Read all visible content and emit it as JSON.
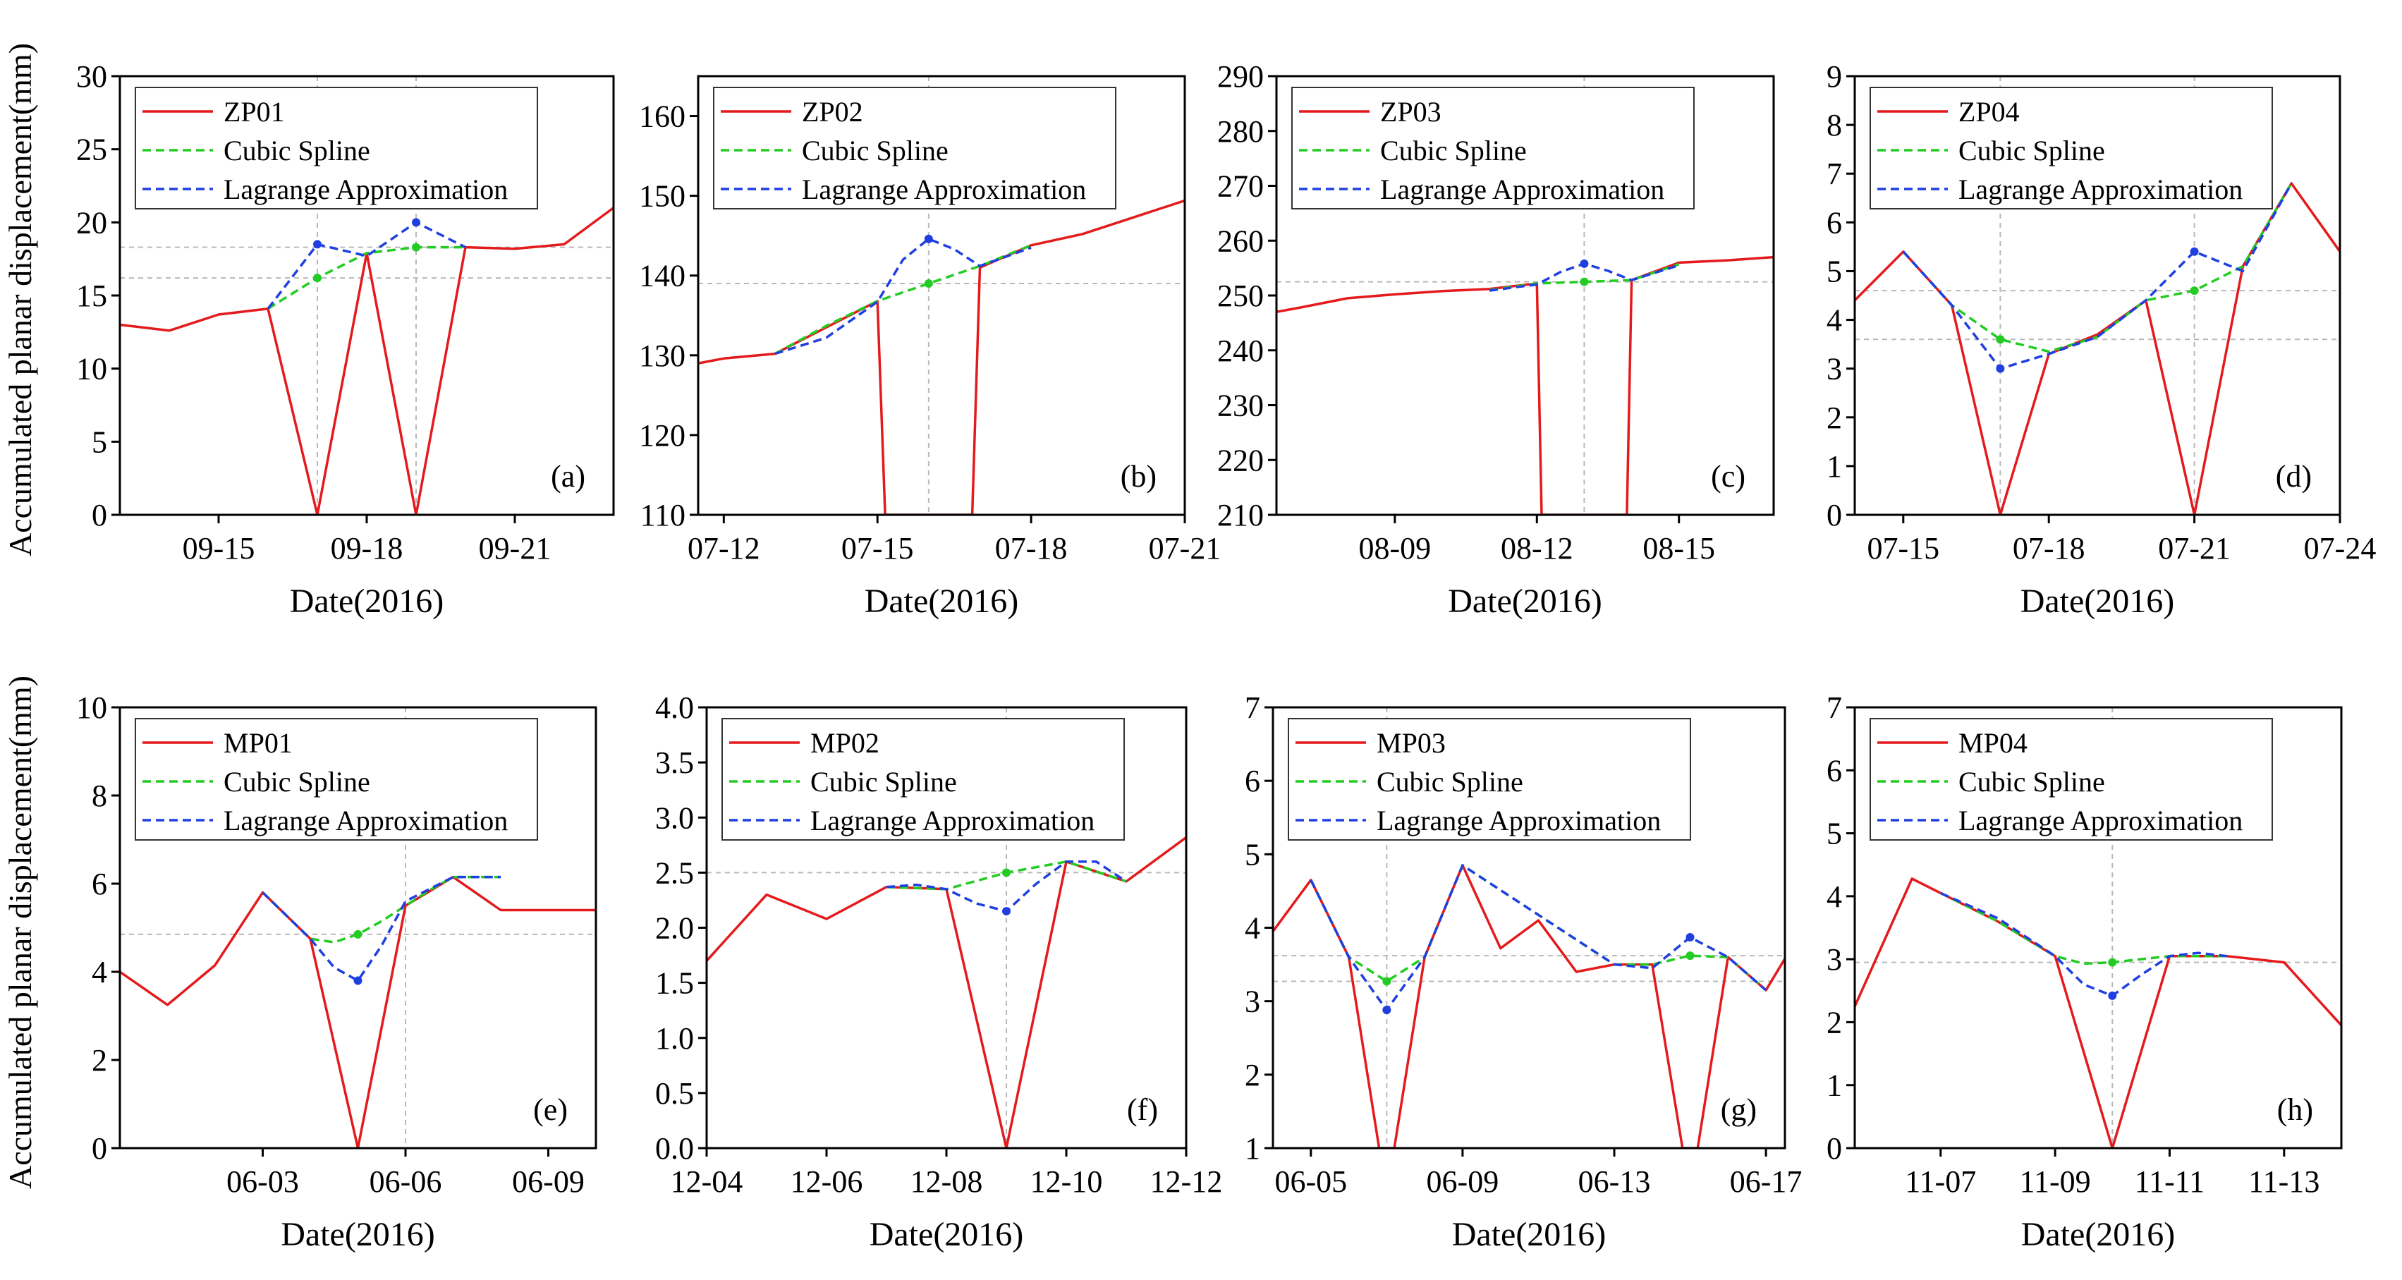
{
  "figure": {
    "row_ylabels": [
      "Accumulated planar displacement(mm)",
      "Accumulated planar displacement(mm)"
    ]
  },
  "series_colors": {
    "measured": "#e41a1c",
    "cubic": "#22cc22",
    "lagrange": "#1f3fe0"
  },
  "chart_data": [
    {
      "type": "line",
      "panel_label": "(a)",
      "xlabel": "Date(2016)",
      "xlim": [
        13.0,
        23.0
      ],
      "ylim": [
        0,
        30
      ],
      "xticks": [
        {
          "x": 15,
          "label": "09-15"
        },
        {
          "x": 18,
          "label": "09-18"
        },
        {
          "x": 21,
          "label": "09-21"
        }
      ],
      "yticks": [
        0,
        5,
        10,
        15,
        20,
        25,
        30
      ],
      "vguides": [
        17,
        19
      ],
      "hguides": [
        18.3,
        16.2
      ],
      "legend": [
        "ZP01",
        "Cubic Spline",
        "Lagrange Approximation"
      ],
      "measured": {
        "name": "ZP01",
        "x": [
          13,
          14,
          15,
          16,
          17,
          18,
          19,
          20,
          21,
          22,
          23
        ],
        "y": [
          13.0,
          12.6,
          13.7,
          14.1,
          0,
          17.9,
          0,
          18.3,
          18.2,
          18.5,
          21.0
        ]
      },
      "cubic": {
        "name": "Cubic Spline",
        "x": [
          16,
          17,
          18,
          19,
          20
        ],
        "y": [
          14.1,
          16.2,
          17.9,
          18.3,
          18.3
        ],
        "markers": [
          17,
          19
        ]
      },
      "lagrange": {
        "name": "Lagrange Approximation",
        "x": [
          16,
          17,
          18,
          19,
          20
        ],
        "y": [
          14.1,
          18.5,
          17.7,
          20.0,
          18.3
        ],
        "markers": [
          17,
          19
        ]
      },
      "grid": false,
      "legend_position": "top-left"
    },
    {
      "type": "line",
      "panel_label": "(b)",
      "xlabel": "Date(2016)",
      "xlim": [
        11.5,
        21.0
      ],
      "ylim": [
        110,
        165
      ],
      "xticks": [
        {
          "x": 12,
          "label": "07-12"
        },
        {
          "x": 15,
          "label": "07-15"
        },
        {
          "x": 18,
          "label": "07-18"
        },
        {
          "x": 21,
          "label": "07-21"
        }
      ],
      "yticks": [
        110,
        120,
        130,
        140,
        150,
        160
      ],
      "vguides": [
        16
      ],
      "hguides": [
        139
      ],
      "legend": [
        "ZP02",
        "Cubic Spline",
        "Lagrange Approximation"
      ],
      "measured": {
        "name": "ZP02",
        "x": [
          11.5,
          12,
          13,
          14,
          15,
          15.15,
          16.85,
          17,
          18,
          19,
          20,
          21
        ],
        "y": [
          129,
          129.6,
          130.2,
          133.5,
          136.8,
          110,
          110,
          141,
          143.8,
          145.2,
          147.3,
          149.4
        ]
      },
      "cubic": {
        "name": "Cubic Spline",
        "x": [
          13,
          14,
          15,
          16,
          17,
          18
        ],
        "y": [
          130.2,
          133.7,
          136.8,
          139.0,
          141.2,
          143.8
        ],
        "markers": [
          16
        ]
      },
      "lagrange": {
        "name": "Lagrange Approximation",
        "x": [
          13,
          14,
          15,
          15.5,
          16,
          16.5,
          17,
          18
        ],
        "y": [
          130.2,
          132.2,
          136.7,
          142.0,
          144.6,
          143.3,
          141.2,
          143.5
        ],
        "markers": [
          16
        ]
      },
      "grid": false,
      "legend_position": "top-left"
    },
    {
      "type": "line",
      "panel_label": "(c)",
      "xlabel": "Date(2016)",
      "xlim": [
        6.5,
        17.0
      ],
      "ylim": [
        210,
        290
      ],
      "xticks": [
        {
          "x": 9,
          "label": "08-09"
        },
        {
          "x": 12,
          "label": "08-12"
        },
        {
          "x": 15,
          "label": "08-15"
        }
      ],
      "yticks": [
        210,
        220,
        230,
        240,
        250,
        260,
        270,
        280,
        290
      ],
      "vguides": [
        13
      ],
      "hguides": [
        252.5
      ],
      "legend": [
        "ZP03",
        "Cubic Spline",
        "Lagrange Approximation"
      ],
      "measured": {
        "name": "ZP03",
        "x": [
          6.5,
          7,
          8,
          9,
          10,
          11,
          12,
          12.1,
          13.9,
          14,
          15,
          16,
          17
        ],
        "y": [
          247,
          247.8,
          249.5,
          250.2,
          250.8,
          251.2,
          252.2,
          210,
          210,
          252.8,
          256.0,
          256.4,
          257.0
        ]
      },
      "cubic": {
        "name": "Cubic Spline",
        "x": [
          11,
          12,
          13,
          14,
          15
        ],
        "y": [
          251.0,
          252.2,
          252.5,
          252.8,
          255.7
        ],
        "markers": [
          13
        ]
      },
      "lagrange": {
        "name": "Lagrange Approximation",
        "x": [
          11,
          12,
          12.5,
          13,
          13.5,
          14,
          15
        ],
        "y": [
          250.9,
          252.0,
          254.3,
          255.8,
          254.5,
          252.8,
          255.5
        ],
        "markers": [
          13
        ]
      },
      "grid": false,
      "legend_position": "top-left"
    },
    {
      "type": "line",
      "panel_label": "(d)",
      "xlabel": "Date(2016)",
      "xlim": [
        14.0,
        24.0
      ],
      "ylim": [
        0,
        9
      ],
      "xticks": [
        {
          "x": 15,
          "label": "07-15"
        },
        {
          "x": 18,
          "label": "07-18"
        },
        {
          "x": 21,
          "label": "07-21"
        },
        {
          "x": 24,
          "label": "07-24"
        }
      ],
      "yticks": [
        0,
        1,
        2,
        3,
        4,
        5,
        6,
        7,
        8,
        9
      ],
      "vguides": [
        17,
        21
      ],
      "hguides": [
        4.6,
        3.6
      ],
      "legend": [
        "ZP04",
        "Cubic Spline",
        "Lagrange Approximation"
      ],
      "measured": {
        "name": "ZP04",
        "x": [
          14,
          15,
          16,
          17,
          18,
          19,
          20,
          21,
          22,
          23,
          24
        ],
        "y": [
          4.4,
          5.4,
          4.3,
          0,
          3.3,
          3.7,
          4.4,
          0,
          5.1,
          6.8,
          5.4
        ]
      },
      "cubic": {
        "name": "Cubic Spline",
        "x": [
          15,
          16,
          17,
          18,
          19,
          20,
          21,
          22,
          23
        ],
        "y": [
          5.4,
          4.3,
          3.6,
          3.35,
          3.65,
          4.4,
          4.6,
          5.1,
          6.8
        ],
        "markers": [
          17,
          21
        ]
      },
      "lagrange": {
        "name": "Lagrange Approximation",
        "x": [
          15,
          16,
          17,
          18,
          19,
          20,
          21,
          22,
          23
        ],
        "y": [
          5.4,
          4.3,
          3.0,
          3.3,
          3.65,
          4.4,
          5.4,
          5.0,
          6.8
        ],
        "markers": [
          17,
          21
        ]
      },
      "grid": false,
      "legend_position": "top-left"
    },
    {
      "type": "line",
      "panel_label": "(e)",
      "xlabel": "Date(2016)",
      "xlim": [
        0.0,
        10.0
      ],
      "ylim": [
        0,
        10
      ],
      "xticks": [
        {
          "x": 3,
          "label": "06-03"
        },
        {
          "x": 6,
          "label": "06-06"
        },
        {
          "x": 9,
          "label": "06-09"
        }
      ],
      "yticks": [
        0,
        2,
        4,
        6,
        8,
        10
      ],
      "vguides": [
        6
      ],
      "hguides": [
        4.85
      ],
      "legend": [
        "MP01",
        "Cubic Spline",
        "Lagrange Approximation"
      ],
      "measured": {
        "name": "MP01",
        "x": [
          0,
          1,
          2,
          3,
          4,
          5,
          6,
          7,
          8,
          9,
          10
        ],
        "y": [
          4.0,
          3.25,
          4.15,
          5.8,
          4.75,
          0,
          5.5,
          6.15,
          5.4,
          5.4,
          5.4
        ]
      },
      "cubic": {
        "name": "Cubic Spline",
        "x": [
          3,
          4,
          4.5,
          5,
          5.5,
          6,
          6.5,
          7,
          7.5,
          8
        ],
        "y": [
          5.8,
          4.75,
          4.67,
          4.85,
          5.15,
          5.5,
          5.85,
          6.15,
          6.15,
          6.15
        ],
        "markers": [
          5
        ]
      },
      "lagrange": {
        "name": "Lagrange Approximation",
        "x": [
          3,
          4,
          4.5,
          5,
          5.5,
          6,
          7,
          8
        ],
        "y": [
          5.8,
          4.75,
          4.1,
          3.8,
          4.6,
          5.6,
          6.15,
          6.15
        ],
        "markers": [
          5
        ]
      },
      "grid": false,
      "legend_position": "top-left"
    },
    {
      "type": "line",
      "panel_label": "(f)",
      "xlabel": "Date(2016)",
      "xlim": [
        4.0,
        12.0
      ],
      "ylim": [
        0.0,
        4.0
      ],
      "xticks": [
        {
          "x": 4,
          "label": "12-04"
        },
        {
          "x": 6,
          "label": "12-06"
        },
        {
          "x": 8,
          "label": "12-08"
        },
        {
          "x": 10,
          "label": "12-10"
        },
        {
          "x": 12,
          "label": "12-12"
        }
      ],
      "yticks": [
        0.0,
        0.5,
        1.0,
        1.5,
        2.0,
        2.5,
        3.0,
        3.5,
        4.0
      ],
      "vguides": [
        9
      ],
      "hguides": [
        2.5
      ],
      "legend": [
        "MP02",
        "Cubic Spline",
        "Lagrange Approximation"
      ],
      "measured": {
        "name": "MP02",
        "x": [
          4,
          5,
          6,
          7,
          8,
          9,
          10,
          11,
          12
        ],
        "y": [
          1.7,
          2.3,
          2.08,
          2.37,
          2.35,
          0,
          2.6,
          2.42,
          2.82
        ]
      },
      "cubic": {
        "name": "Cubic Spline",
        "x": [
          7,
          8,
          9,
          10,
          11
        ],
        "y": [
          2.37,
          2.35,
          2.5,
          2.6,
          2.42
        ],
        "markers": [
          9
        ]
      },
      "lagrange": {
        "name": "Lagrange Approximation",
        "x": [
          7,
          7.5,
          8,
          8.5,
          9,
          9.5,
          10,
          10.5,
          11
        ],
        "y": [
          2.37,
          2.39,
          2.35,
          2.22,
          2.15,
          2.4,
          2.6,
          2.6,
          2.42
        ],
        "markers": [
          9
        ]
      },
      "grid": false,
      "legend_position": "top-left"
    },
    {
      "type": "line",
      "panel_label": "(g)",
      "xlabel": "Date(2016)",
      "xlim": [
        4.0,
        17.5
      ],
      "ylim": [
        1,
        7
      ],
      "xticks": [
        {
          "x": 5,
          "label": "06-05"
        },
        {
          "x": 9,
          "label": "06-09"
        },
        {
          "x": 13,
          "label": "06-13"
        },
        {
          "x": 17,
          "label": "06-17"
        }
      ],
      "yticks": [
        1,
        2,
        3,
        4,
        5,
        6,
        7
      ],
      "vguides": [
        7
      ],
      "hguides": [
        3.62,
        3.27
      ],
      "legend": [
        "MP03",
        "Cubic Spline",
        "Lagrange Approximation"
      ],
      "measured": {
        "name": "MP03",
        "x": [
          4,
          5,
          6,
          6.8,
          7.2,
          8,
          9,
          10,
          11,
          12,
          13,
          14,
          14.8,
          15.2,
          16,
          17,
          17.5
        ],
        "y": [
          3.95,
          4.65,
          3.6,
          1,
          1,
          3.6,
          4.85,
          3.72,
          4.1,
          3.4,
          3.5,
          3.5,
          1,
          1,
          3.6,
          3.15,
          3.58
        ]
      },
      "cubic": {
        "name": "Cubic Spline",
        "x": [
          5,
          6,
          7,
          8,
          9,
          13,
          14,
          15,
          16,
          17
        ],
        "y": [
          4.65,
          3.6,
          3.27,
          3.6,
          4.85,
          3.5,
          3.5,
          3.62,
          3.6,
          3.15
        ],
        "markers": [
          7,
          15
        ]
      },
      "lagrange": {
        "name": "Lagrange Approximation",
        "x": [
          5,
          6,
          7,
          8,
          9,
          13,
          14,
          15,
          16,
          17
        ],
        "y": [
          4.65,
          3.6,
          2.88,
          3.6,
          4.85,
          3.5,
          3.45,
          3.87,
          3.6,
          3.15
        ],
        "markers": [
          7,
          15
        ]
      },
      "grid": false,
      "legend_position": "top-left"
    },
    {
      "type": "line",
      "panel_label": "(h)",
      "xlabel": "Date(2016)",
      "xlim": [
        5.5,
        14.0
      ],
      "ylim": [
        0,
        7
      ],
      "xticks": [
        {
          "x": 7,
          "label": "11-07"
        },
        {
          "x": 9,
          "label": "11-09"
        },
        {
          "x": 11,
          "label": "11-11"
        },
        {
          "x": 13,
          "label": "11-13"
        }
      ],
      "yticks": [
        0,
        1,
        2,
        3,
        4,
        5,
        6,
        7
      ],
      "vguides": [
        10
      ],
      "hguides": [
        2.95
      ],
      "legend": [
        "MP04",
        "Cubic Spline",
        "Lagrange Approximation"
      ],
      "measured": {
        "name": "MP04",
        "x": [
          5.5,
          6.5,
          7,
          8,
          9,
          10,
          11,
          12,
          13,
          14
        ],
        "y": [
          2.25,
          4.28,
          4.05,
          3.6,
          3.05,
          0,
          3.05,
          3.05,
          2.95,
          1.95
        ]
      },
      "cubic": {
        "name": "Cubic Spline",
        "x": [
          7,
          8,
          9,
          9.5,
          10,
          10.5,
          11,
          12
        ],
        "y": [
          4.05,
          3.6,
          3.05,
          2.93,
          2.95,
          3.0,
          3.05,
          3.05
        ],
        "markers": [
          10
        ]
      },
      "lagrange": {
        "name": "Lagrange Approximation",
        "x": [
          7,
          8,
          9,
          9.5,
          10,
          10.5,
          11,
          11.5,
          12
        ],
        "y": [
          4.05,
          3.65,
          3.05,
          2.6,
          2.42,
          2.75,
          3.05,
          3.1,
          3.05
        ],
        "markers": [
          10
        ]
      },
      "grid": false,
      "legend_position": "top-left"
    }
  ]
}
